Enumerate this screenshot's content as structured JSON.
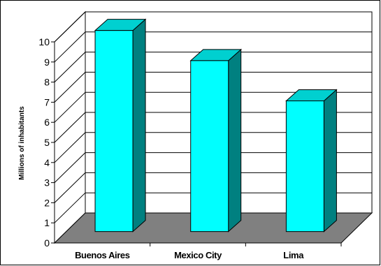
{
  "chart_data": {
    "type": "bar",
    "categories": [
      "Buenos Aires",
      "Mexico City",
      "Lima"
    ],
    "values": [
      10.0,
      8.5,
      6.5
    ],
    "title": "",
    "xlabel": "",
    "ylabel": "Millions of inhabitants",
    "ylim": [
      0,
      10
    ],
    "yticks": [
      "0",
      "1",
      "2",
      "3",
      "4",
      "5",
      "6",
      "7",
      "8",
      "9",
      "10"
    ],
    "grid": true,
    "legend": "none",
    "colors": {
      "bar_front": "#00FFFF",
      "bar_side": "#008080",
      "bar_top": "#00D0D0",
      "floor": "#808080",
      "grid": "#000000"
    }
  }
}
